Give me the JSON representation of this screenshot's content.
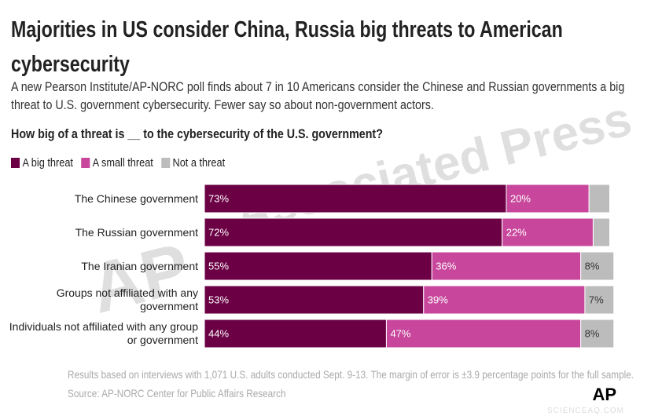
{
  "chart_data": {
    "type": "stacked-bar",
    "orientation": "horizontal",
    "title": "Majorities in US consider China, Russia big threats to American cybersecurity",
    "subtitle": "A new Pearson Institute/AP-NORC poll finds about 7 in 10 Americans consider the Chinese and Russian governments a big threat to U.S. government cybersecurity. Fewer say so about non-government actors.",
    "question": "How big of a threat is __ to the cybersecurity of the U.S. government?",
    "categories": [
      "The Chinese government",
      "The Russian government",
      "The Iranian government",
      "Groups not affiliated with any government",
      "Individuals not affiliated with any group or government"
    ],
    "series": [
      {
        "name": "A big threat",
        "color": "#6b0044",
        "values": [
          73,
          72,
          55,
          53,
          44
        ],
        "value_labels": [
          "73%",
          "72%",
          "55%",
          "53%",
          "44%"
        ]
      },
      {
        "name": "A small threat",
        "color": "#c8479c",
        "values": [
          20,
          22,
          36,
          39,
          47
        ],
        "value_labels": [
          "20%",
          "22%",
          "36%",
          "39%",
          "47%"
        ]
      },
      {
        "name": "Not a threat",
        "color": "#bcbcbc",
        "values": [
          5,
          4,
          8,
          7,
          8
        ],
        "value_labels": [
          null,
          null,
          "8%",
          "7%",
          "8%"
        ]
      }
    ],
    "xlim": [
      0,
      100
    ],
    "notes": [
      "Results based on interviews with 1,071 U.S. adults conducted Sept. 9-13. The margin of error is ±3.9 percentage points for the full sample.",
      "Source: AP-NORC Center for Public Affairs Research"
    ],
    "logo": "AP",
    "watermark": [
      "AP",
      "Associated Press"
    ],
    "site_watermark": "SCIENCEAQ.COM"
  }
}
